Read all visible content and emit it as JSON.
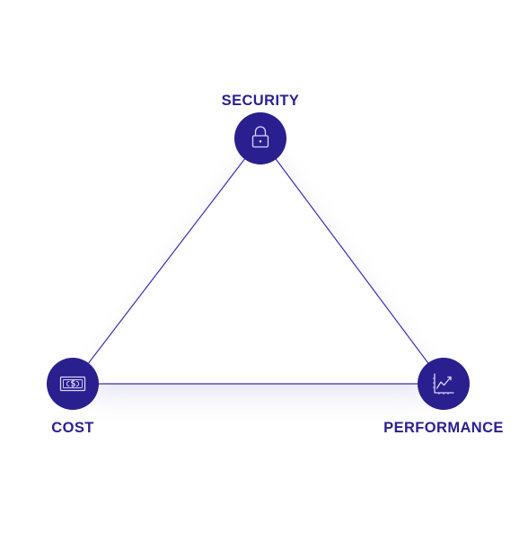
{
  "nodes": {
    "security": {
      "label": "SECURITY",
      "icon": "lock-icon"
    },
    "cost": {
      "label": "COST",
      "icon": "banknote-icon"
    },
    "performance": {
      "label": "PERFORMANCE",
      "icon": "trend-chart-icon"
    }
  },
  "colors": {
    "node_fill": "#2a1f8f",
    "edge": "#3b2fb0",
    "label": "#2a1f8f",
    "icon_stroke": "#d9d6f5"
  }
}
